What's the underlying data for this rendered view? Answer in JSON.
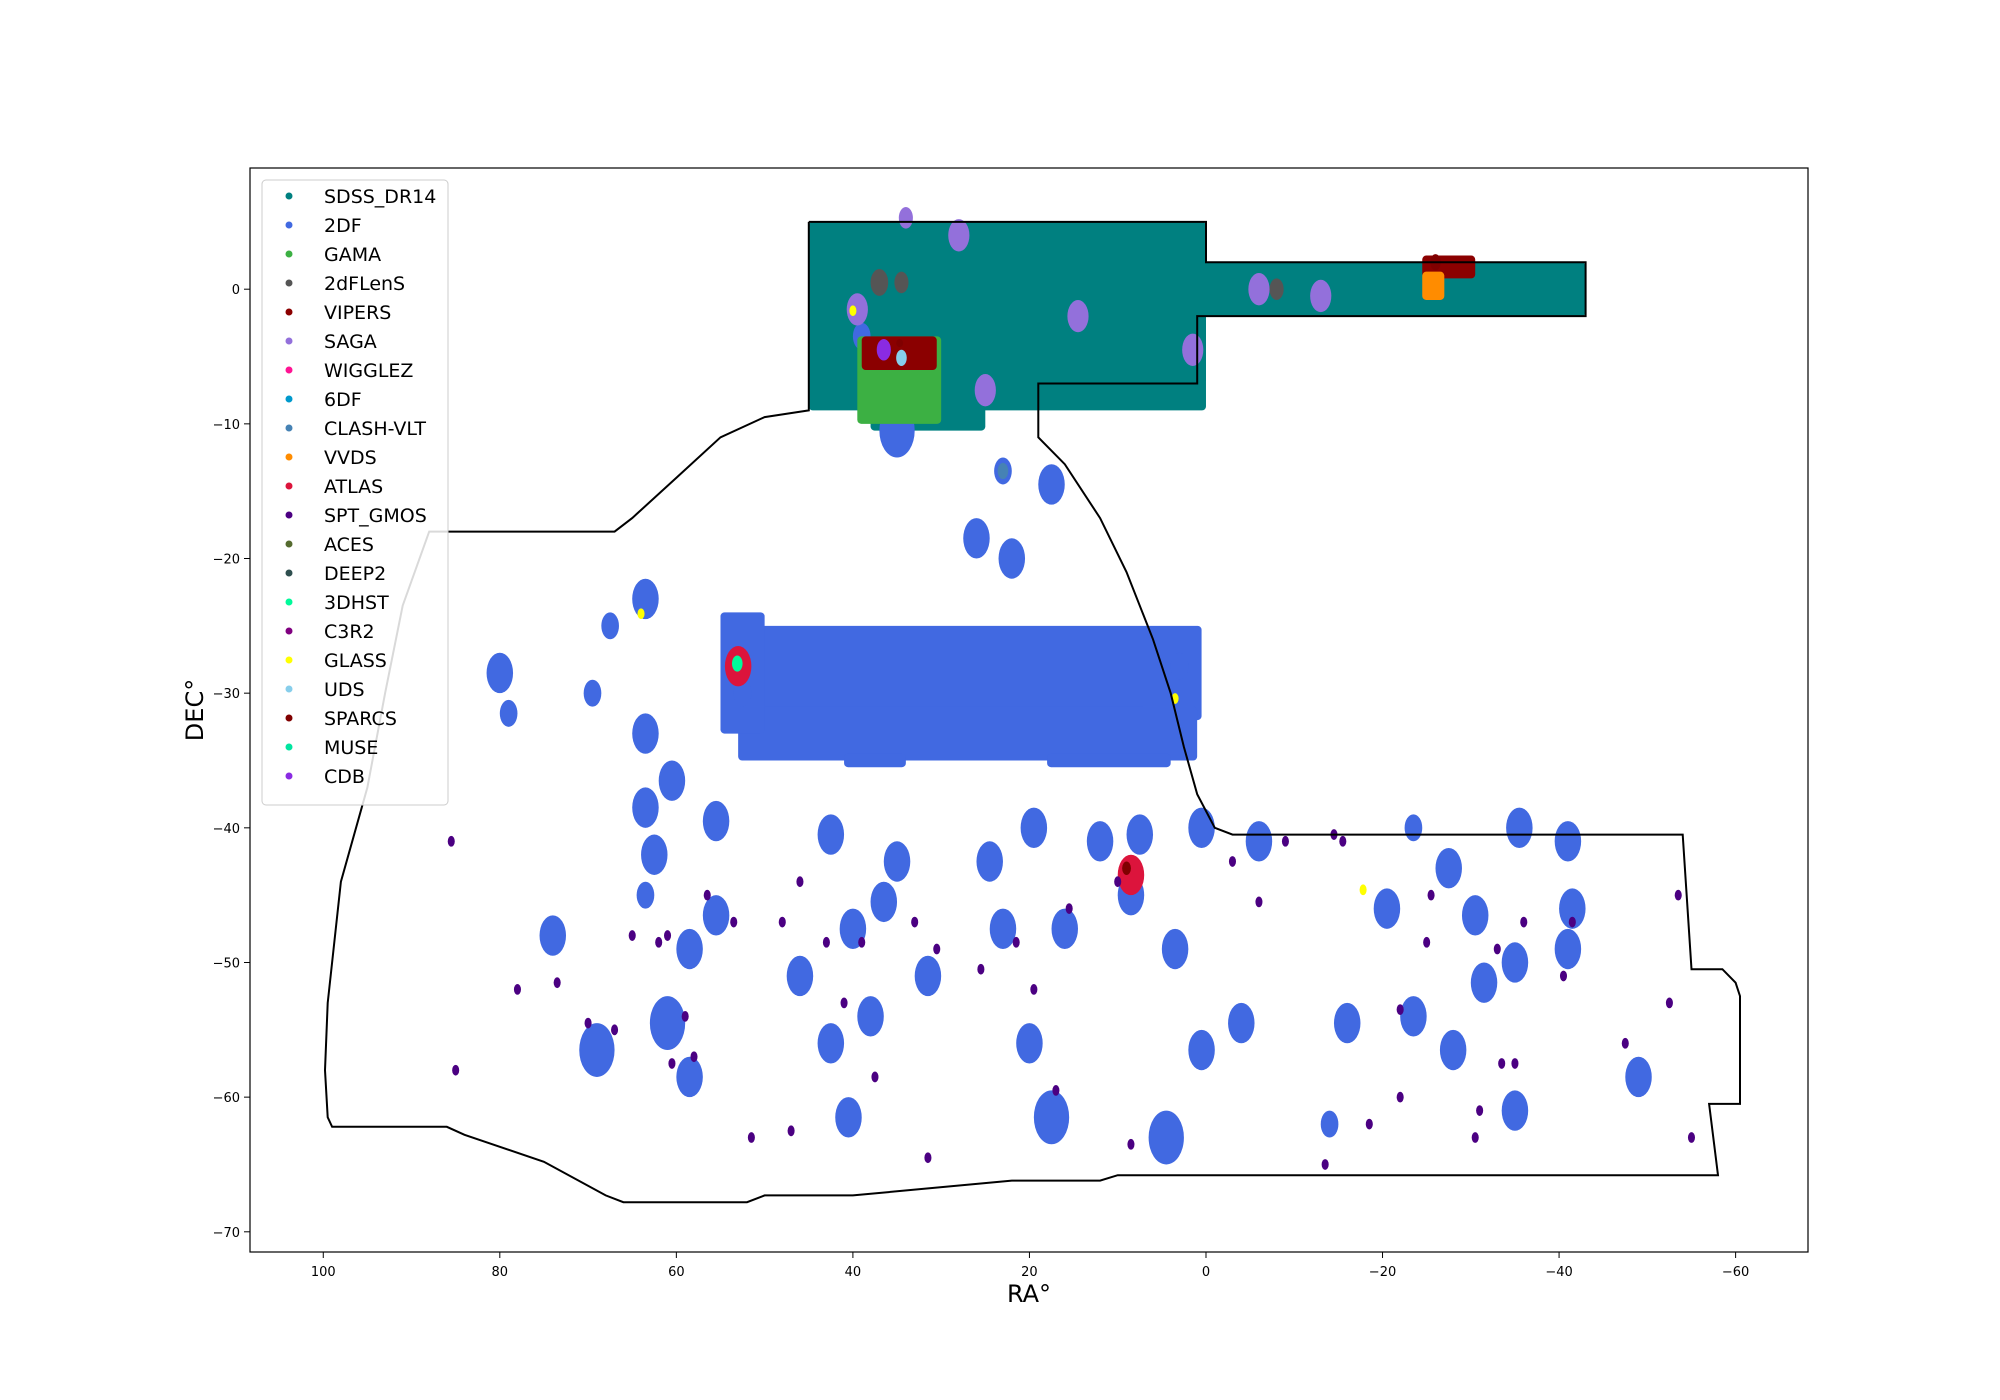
{
  "chart_data": {
    "type": "scatter",
    "title": "",
    "xlabel": "RA°",
    "ylabel": "DEC°",
    "xlim": [
      108.3,
      -68.2
    ],
    "ylim": [
      -71.5,
      9.0
    ],
    "x_ticks": [
      100,
      80,
      60,
      40,
      20,
      0,
      -20,
      -40,
      -60
    ],
    "x_tick_labels": [
      "100",
      "80",
      "60",
      "40",
      "20",
      "0",
      "−20",
      "−40",
      "−60"
    ],
    "y_ticks": [
      0,
      -10,
      -20,
      -30,
      -40,
      -50,
      -60,
      -70
    ],
    "y_tick_labels": [
      "0",
      "−10",
      "−20",
      "−30",
      "−40",
      "−50",
      "−60",
      "−70"
    ],
    "grid": false,
    "legend_position": "top-left",
    "footprint": [
      [
        45,
        5
      ],
      [
        0,
        5
      ],
      [
        0,
        2
      ],
      [
        -43,
        2
      ],
      [
        -43,
        -2
      ],
      [
        1,
        -2
      ],
      [
        1,
        -7
      ],
      [
        19,
        -7
      ],
      [
        19,
        -11
      ],
      [
        16,
        -13
      ],
      [
        12,
        -17
      ],
      [
        9,
        -21
      ],
      [
        6,
        -26
      ],
      [
        4,
        -30
      ],
      [
        2.5,
        -34
      ],
      [
        1,
        -37.5
      ],
      [
        -1,
        -40
      ],
      [
        -3,
        -40.5
      ],
      [
        -54,
        -40.5
      ],
      [
        -55,
        -50.5
      ],
      [
        -58.5,
        -50.5
      ],
      [
        -60,
        -51.5
      ],
      [
        -60.5,
        -52.5
      ],
      [
        -60.5,
        -60.5
      ],
      [
        -57,
        -60.5
      ],
      [
        -58,
        -65.8
      ],
      [
        10,
        -65.8
      ],
      [
        12,
        -66.2
      ],
      [
        22,
        -66.2
      ],
      [
        40,
        -67.3
      ],
      [
        50,
        -67.3
      ],
      [
        52,
        -67.8
      ],
      [
        66,
        -67.8
      ],
      [
        68,
        -67.3
      ],
      [
        75,
        -64.8
      ],
      [
        84,
        -62.8
      ],
      [
        86,
        -62.2
      ],
      [
        99,
        -62.2
      ],
      [
        99.5,
        -61.5
      ],
      [
        99.8,
        -58
      ],
      [
        99.5,
        -53
      ],
      [
        98,
        -44
      ],
      [
        95,
        -37
      ],
      [
        93,
        -30
      ],
      [
        91,
        -23.5
      ],
      [
        88,
        -18
      ],
      [
        67,
        -18
      ],
      [
        65,
        -17
      ],
      [
        60,
        -14
      ],
      [
        55,
        -11
      ],
      [
        50,
        -9.5
      ],
      [
        45,
        -9
      ],
      [
        45,
        5
      ]
    ],
    "series": [
      {
        "name": "SDSS_DR14",
        "color": "#008080",
        "rects": [
          [
            45,
            -9,
            0,
            5
          ],
          [
            0,
            -7,
            1,
            2
          ],
          [
            1,
            -2,
            -43,
            2
          ],
          [
            25,
            -10.5,
            38,
            -8
          ]
        ],
        "points": []
      },
      {
        "name": "2DF",
        "color": "#4169e1",
        "rects": [
          [
            54,
            -32,
            0.5,
            -25
          ],
          [
            53,
            -35,
            1,
            -31
          ],
          [
            55,
            -33,
            50,
            -24
          ],
          [
            41,
            -35.5,
            34,
            -34.5
          ],
          [
            18,
            -35.5,
            4,
            -34.5
          ]
        ],
        "points": [
          [
            35,
            -10.5,
            2
          ],
          [
            23,
            -13.5,
            1
          ],
          [
            17.5,
            -14.5,
            1.5
          ],
          [
            26,
            -18.5,
            1.5
          ],
          [
            22,
            -20,
            1.5
          ],
          [
            63.5,
            -23,
            1.5
          ],
          [
            80,
            -28.5,
            1.5
          ],
          [
            69.5,
            -30,
            1
          ],
          [
            67.5,
            -25,
            1
          ],
          [
            79,
            -31.5,
            1
          ],
          [
            63.5,
            -33,
            1.5
          ],
          [
            60.5,
            -36.5,
            1.5
          ],
          [
            63.5,
            -38.5,
            1.5
          ],
          [
            55.5,
            -39.5,
            1.5
          ],
          [
            42.5,
            -40.5,
            1.5
          ],
          [
            19.5,
            -40,
            1.5
          ],
          [
            12,
            -41,
            1.5
          ],
          [
            7.5,
            -40.5,
            1.5
          ],
          [
            0.5,
            -40,
            1.5
          ],
          [
            -6,
            -41,
            1.5
          ],
          [
            -23.5,
            -40,
            1
          ],
          [
            -35.5,
            -40,
            1.5
          ],
          [
            -41,
            -41,
            1.5
          ],
          [
            -27.5,
            -43,
            1.5
          ],
          [
            62.5,
            -42,
            1.5
          ],
          [
            35,
            -42.5,
            1.5
          ],
          [
            24.5,
            -42.5,
            1.5
          ],
          [
            8.5,
            -45,
            1.5
          ],
          [
            74,
            -48,
            1.5
          ],
          [
            63.5,
            -45,
            1
          ],
          [
            55.5,
            -46.5,
            1.5
          ],
          [
            40,
            -47.5,
            1.5
          ],
          [
            36.5,
            -45.5,
            1.5
          ],
          [
            23,
            -47.5,
            1.5
          ],
          [
            16,
            -47.5,
            1.5
          ],
          [
            -20.5,
            -46,
            1.5
          ],
          [
            -30.5,
            -46.5,
            1.5
          ],
          [
            -41.5,
            -46,
            1.5
          ],
          [
            58.5,
            -49,
            1.5
          ],
          [
            3.5,
            -49,
            1.5
          ],
          [
            -35,
            -50,
            1.5
          ],
          [
            -41,
            -49,
            1.5
          ],
          [
            46,
            -51,
            1.5
          ],
          [
            31.5,
            -51,
            1.5
          ],
          [
            -31.5,
            -51.5,
            1.5
          ],
          [
            61,
            -54.5,
            2
          ],
          [
            38,
            -54,
            1.5
          ],
          [
            -4,
            -54.5,
            1.5
          ],
          [
            -16,
            -54.5,
            1.5
          ],
          [
            -23.5,
            -54,
            1.5
          ],
          [
            69,
            -56.5,
            2
          ],
          [
            58.5,
            -58.5,
            1.5
          ],
          [
            42.5,
            -56,
            1.5
          ],
          [
            20,
            -56,
            1.5
          ],
          [
            0.5,
            -56.5,
            1.5
          ],
          [
            -28,
            -56.5,
            1.5
          ],
          [
            -49,
            -58.5,
            1.5
          ],
          [
            40.5,
            -61.5,
            1.5
          ],
          [
            17.5,
            -61.5,
            2
          ],
          [
            4.5,
            -63,
            2
          ],
          [
            -14,
            -62,
            1
          ],
          [
            -35,
            -61,
            1.5
          ],
          [
            34.5,
            -5.5,
            1
          ],
          [
            39,
            -3.5,
            1
          ],
          [
            52.5,
            -30,
            1
          ],
          [
            3,
            -28,
            1
          ]
        ]
      },
      {
        "name": "GAMA",
        "color": "#3cb043",
        "rects": [
          [
            39.5,
            -10,
            30,
            -3.5
          ]
        ],
        "points": []
      },
      {
        "name": "2dFLenS",
        "color": "#555555",
        "rects": [],
        "points": [
          [
            37,
            0.5,
            1
          ],
          [
            34.5,
            0.5,
            0.8
          ],
          [
            -6,
            0,
            1
          ],
          [
            -8,
            0,
            0.8
          ]
        ]
      },
      {
        "name": "VIPERS",
        "color": "#8b0000",
        "rects": [
          [
            39,
            -6,
            30.5,
            -3.5
          ],
          [
            -24.5,
            0.8,
            -30.5,
            2.5
          ]
        ],
        "points": []
      },
      {
        "name": "SAGA",
        "color": "#9370db",
        "rects": [],
        "points": [
          [
            28,
            4,
            1.2
          ],
          [
            39.5,
            -1.5,
            1.2
          ],
          [
            14.5,
            -2,
            1.2
          ],
          [
            -6,
            0,
            1.2
          ],
          [
            -13,
            -0.5,
            1.2
          ],
          [
            1.5,
            -4.5,
            1.2
          ],
          [
            25,
            -7.5,
            1.2
          ],
          [
            34,
            5.3,
            0.8
          ]
        ]
      },
      {
        "name": "WIGGLEZ",
        "color": "#ff1493",
        "rects": [],
        "points": []
      },
      {
        "name": "6DF",
        "color": "#0099cc",
        "rects": [],
        "points": []
      },
      {
        "name": "CLASH-VLT",
        "color": "#4682b4",
        "rects": [],
        "points": [
          [
            23,
            -13.5,
            0.6
          ]
        ]
      },
      {
        "name": "VVDS",
        "color": "#ff8c00",
        "rects": [
          [
            -24.5,
            -0.8,
            -27,
            1.3
          ]
        ],
        "points": []
      },
      {
        "name": "ATLAS",
        "color": "#dc143c",
        "rects": [],
        "points": [
          [
            53,
            -28,
            1.5
          ],
          [
            8.5,
            -43.5,
            1.5
          ]
        ]
      },
      {
        "name": "SPT_GMOS",
        "color": "#4b0082",
        "rects": [],
        "points": [
          [
            85.5,
            -41,
            0.4
          ],
          [
            85,
            -58,
            0.4
          ],
          [
            78,
            -52,
            0.4
          ],
          [
            73.5,
            -51.5,
            0.4
          ],
          [
            70,
            -54.5,
            0.4
          ],
          [
            67,
            -55,
            0.4
          ],
          [
            65,
            -48,
            0.4
          ],
          [
            62,
            -48.5,
            0.4
          ],
          [
            61,
            -48,
            0.4
          ],
          [
            59,
            -54,
            0.4
          ],
          [
            60.5,
            -57.5,
            0.4
          ],
          [
            58,
            -57,
            0.4
          ],
          [
            56.5,
            -45,
            0.4
          ],
          [
            53.5,
            -47,
            0.4
          ],
          [
            51.5,
            -63,
            0.4
          ],
          [
            48,
            -47,
            0.4
          ],
          [
            47,
            -62.5,
            0.4
          ],
          [
            46,
            -44,
            0.4
          ],
          [
            43,
            -48.5,
            0.4
          ],
          [
            41,
            -53,
            0.4
          ],
          [
            39,
            -48.5,
            0.4
          ],
          [
            37.5,
            -58.5,
            0.4
          ],
          [
            33,
            -47,
            0.4
          ],
          [
            31.5,
            -64.5,
            0.4
          ],
          [
            30.5,
            -49,
            0.4
          ],
          [
            25.5,
            -50.5,
            0.4
          ],
          [
            21.5,
            -48.5,
            0.4
          ],
          [
            19.5,
            -52,
            0.4
          ],
          [
            17,
            -59.5,
            0.4
          ],
          [
            15.5,
            -46,
            0.4
          ],
          [
            10,
            -44,
            0.4
          ],
          [
            8.5,
            -63.5,
            0.4
          ],
          [
            -3,
            -42.5,
            0.4
          ],
          [
            -6,
            -45.5,
            0.4
          ],
          [
            -9,
            -41,
            0.4
          ],
          [
            -14.5,
            -40.5,
            0.4
          ],
          [
            -15.5,
            -41,
            0.4
          ],
          [
            -13.5,
            -65,
            0.4
          ],
          [
            -18.5,
            -62,
            0.4
          ],
          [
            -22,
            -60,
            0.4
          ],
          [
            -22,
            -53.5,
            0.4
          ],
          [
            -25,
            -48.5,
            0.4
          ],
          [
            -25.5,
            -45,
            0.4
          ],
          [
            -30.5,
            -63,
            0.4
          ],
          [
            -31,
            -61,
            0.4
          ],
          [
            -33,
            -49,
            0.4
          ],
          [
            -33.5,
            -57.5,
            0.4
          ],
          [
            -35,
            -57.5,
            0.4
          ],
          [
            -36,
            -47,
            0.4
          ],
          [
            -40.5,
            -51,
            0.4
          ],
          [
            -41.5,
            -47,
            0.4
          ],
          [
            -47.5,
            -56,
            0.4
          ],
          [
            -52.5,
            -53,
            0.4
          ],
          [
            -53.5,
            -45,
            0.4
          ],
          [
            -55,
            -63,
            0.4
          ]
        ]
      },
      {
        "name": "ACES",
        "color": "#556b2f",
        "rects": [],
        "points": []
      },
      {
        "name": "DEEP2",
        "color": "#2f4f4f",
        "rects": [],
        "points": []
      },
      {
        "name": "3DHST",
        "color": "#00fa9a",
        "rects": [],
        "points": [
          [
            53.1,
            -27.8,
            0.6
          ]
        ]
      },
      {
        "name": "C3R2",
        "color": "#800080",
        "rects": [],
        "points": []
      },
      {
        "name": "GLASS",
        "color": "#ffff00",
        "rects": [],
        "points": [
          [
            64,
            -24.1,
            0.4
          ],
          [
            40,
            -1.6,
            0.4
          ],
          [
            3.5,
            -30.4,
            0.4
          ],
          [
            -17.8,
            -44.6,
            0.4
          ]
        ]
      },
      {
        "name": "UDS",
        "color": "#87ceeb",
        "rects": [],
        "points": [
          [
            34.5,
            -5.1,
            0.6
          ]
        ]
      },
      {
        "name": "SPARCS",
        "color": "#800000",
        "rects": [],
        "points": [
          [
            9,
            -43,
            0.5
          ],
          [
            -26,
            2,
            0.6
          ],
          [
            34.7,
            -4,
            0.3
          ]
        ]
      },
      {
        "name": "MUSE",
        "color": "#00e5a0",
        "rects": [],
        "points": []
      },
      {
        "name": "CDB",
        "color": "#8a2be2",
        "rects": [],
        "points": [
          [
            36.5,
            -4.5,
            0.8
          ]
        ]
      }
    ]
  }
}
